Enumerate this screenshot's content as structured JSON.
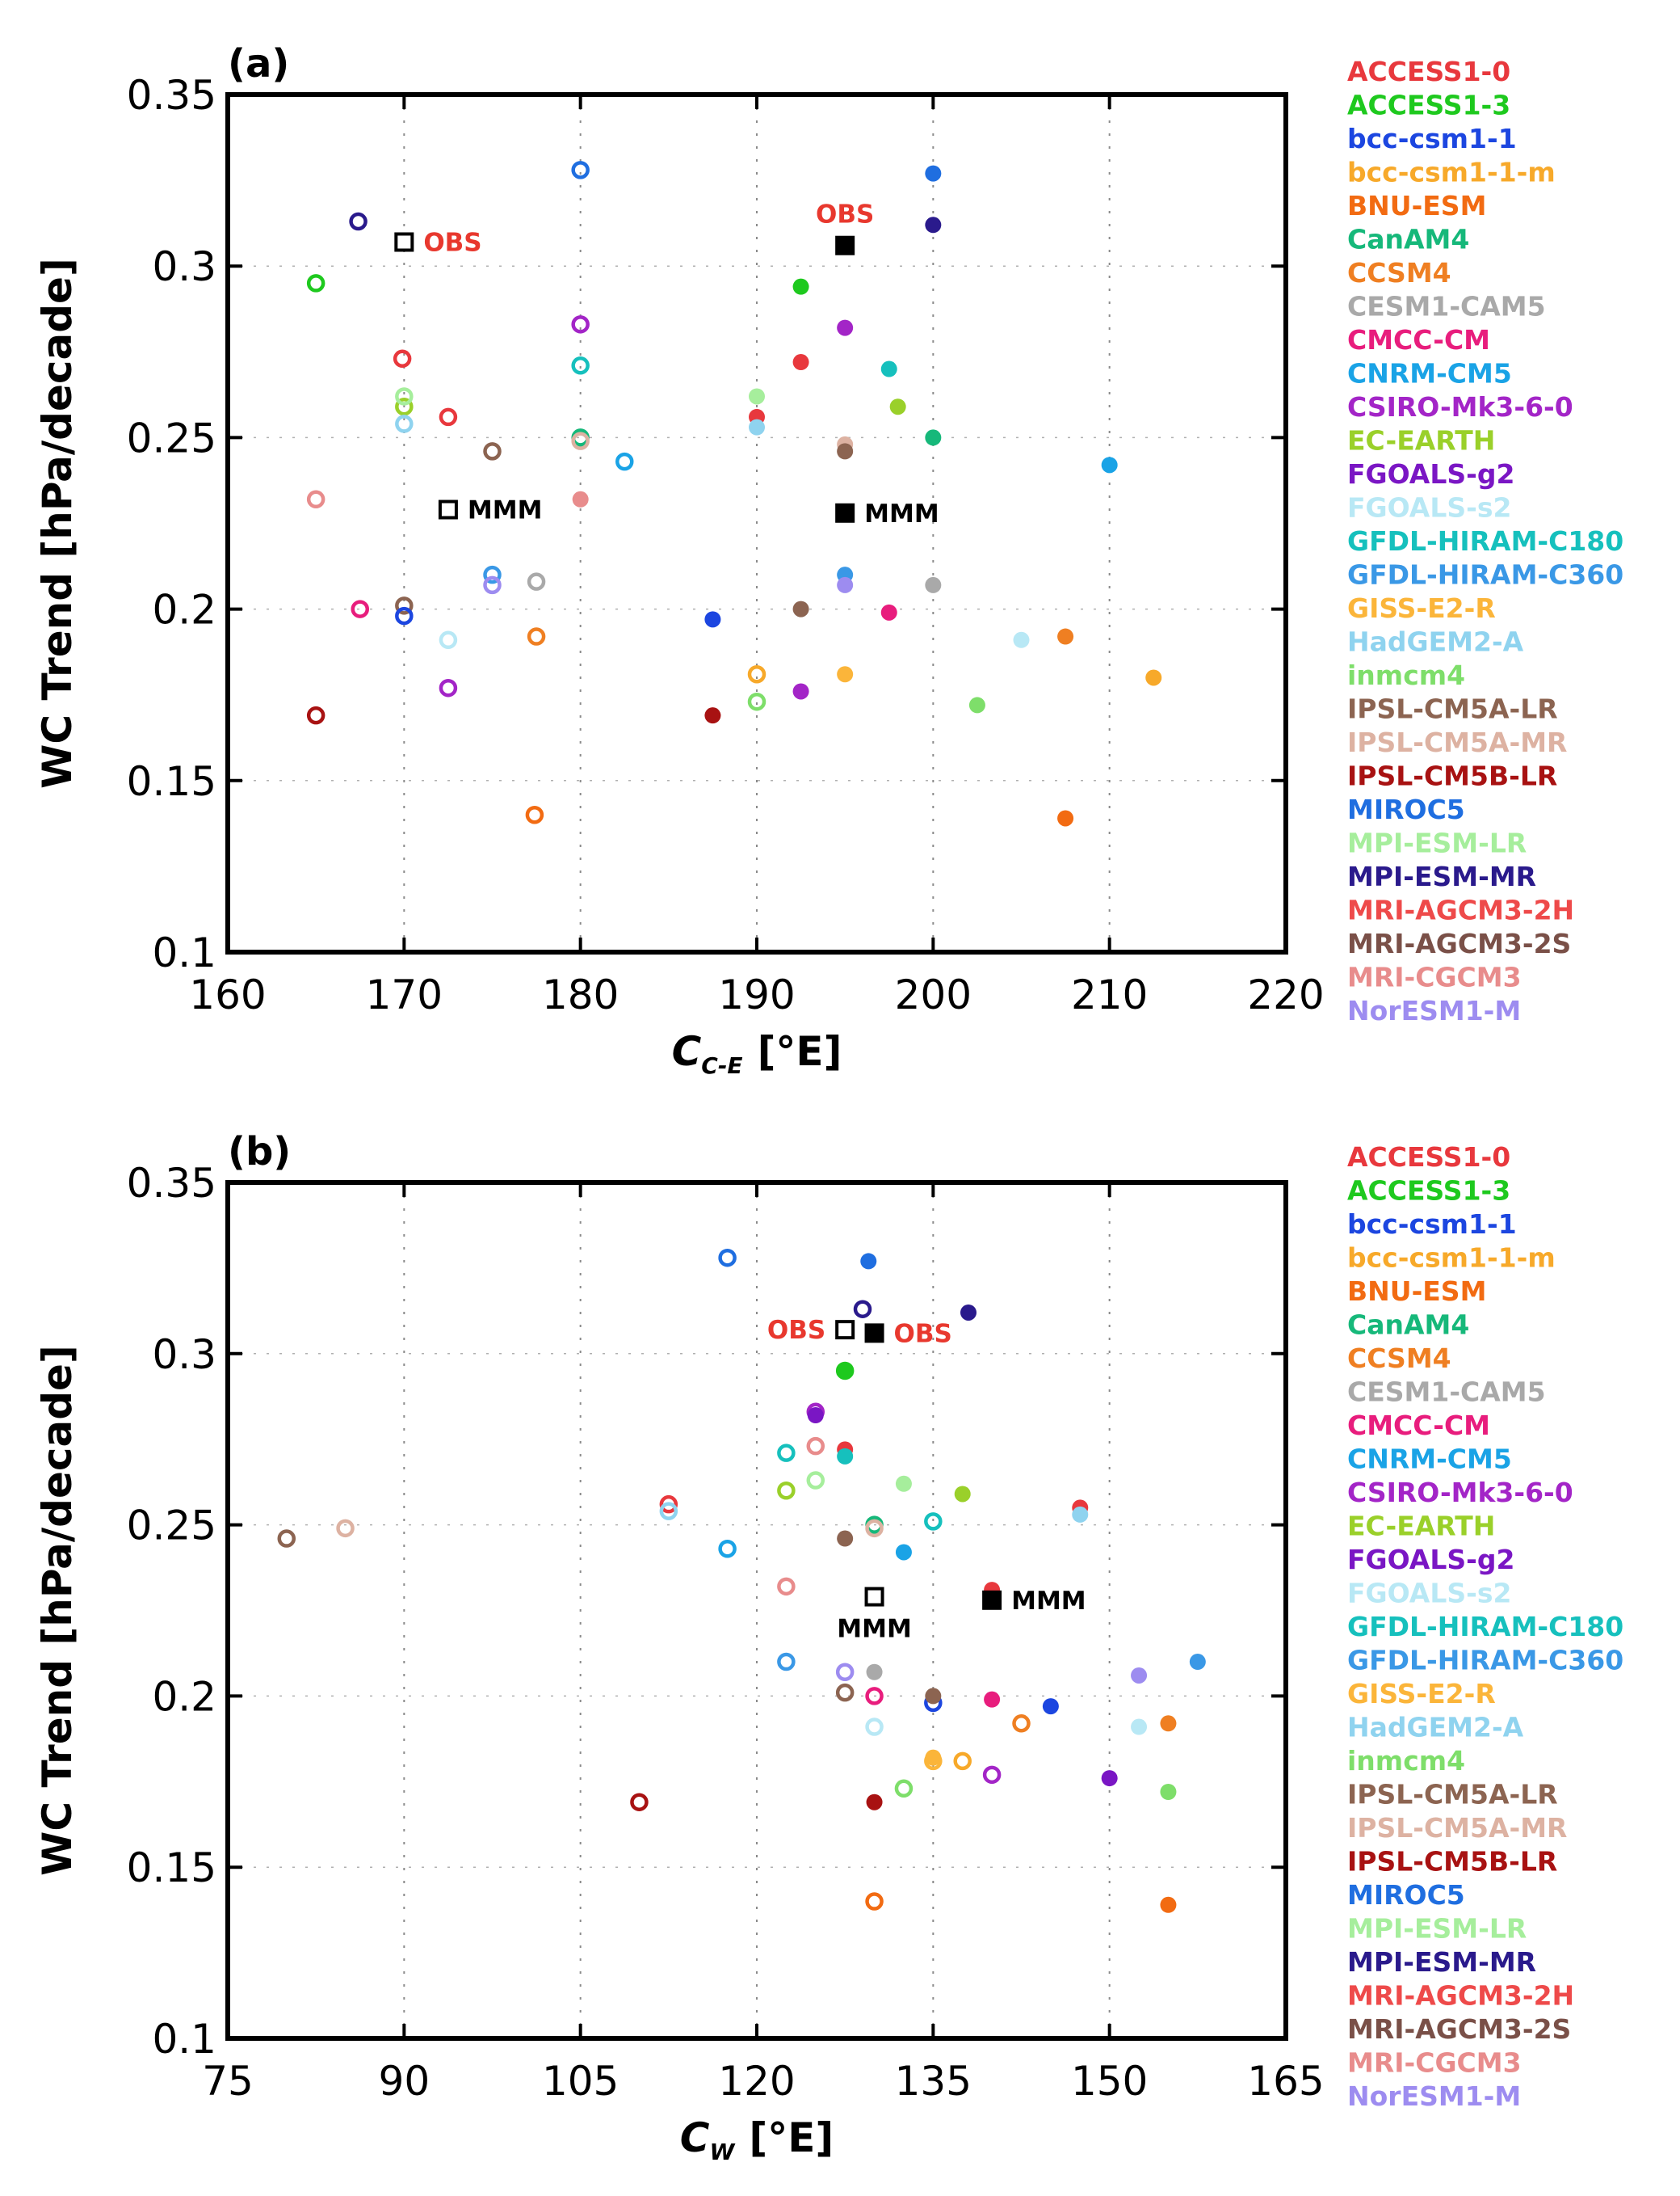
{
  "models": [
    {
      "name": "ACCESS1-0",
      "color": "#e8383d"
    },
    {
      "name": "ACCESS1-3",
      "color": "#1ec91e"
    },
    {
      "name": "bcc-csm1-1",
      "color": "#1c46e0"
    },
    {
      "name": "bcc-csm1-1-m",
      "color": "#f7a92a"
    },
    {
      "name": "BNU-ESM",
      "color": "#f26b12"
    },
    {
      "name": "CanAM4",
      "color": "#16b87a"
    },
    {
      "name": "CCSM4",
      "color": "#ef7f22"
    },
    {
      "name": "CESM1-CAM5",
      "color": "#a9a9a9"
    },
    {
      "name": "CMCC-CM",
      "color": "#e81d7d"
    },
    {
      "name": "CNRM-CM5",
      "color": "#1aa3e6"
    },
    {
      "name": "CSIRO-Mk3-6-0",
      "color": "#a325c7"
    },
    {
      "name": "EC-EARTH",
      "color": "#9ad02a"
    },
    {
      "name": "FGOALS-g2",
      "color": "#7a16c4"
    },
    {
      "name": "FGOALS-s2",
      "color": "#b8e8f5"
    },
    {
      "name": "GFDL-HIRAM-C180",
      "color": "#16c0bd"
    },
    {
      "name": "GFDL-HIRAM-C360",
      "color": "#3a98e6"
    },
    {
      "name": "GISS-E2-R",
      "color": "#fbb53a"
    },
    {
      "name": "HadGEM2-A",
      "color": "#8fd3ef"
    },
    {
      "name": "inmcm4",
      "color": "#7ede6a"
    },
    {
      "name": "IPSL-CM5A-LR",
      "color": "#8c6451"
    },
    {
      "name": "IPSL-CM5A-MR",
      "color": "#ddb2a2"
    },
    {
      "name": "IPSL-CM5B-LR",
      "color": "#a81212"
    },
    {
      "name": "MIROC5",
      "color": "#1f6ee0"
    },
    {
      "name": "MPI-ESM-LR",
      "color": "#a6ee9c"
    },
    {
      "name": "MPI-ESM-MR",
      "color": "#2a1a8c"
    },
    {
      "name": "MRI-AGCM3-2H",
      "color": "#ee4a4a"
    },
    {
      "name": "MRI-AGCM3-2S",
      "color": "#7a5048"
    },
    {
      "name": "MRI-CGCM3",
      "color": "#e88c8c"
    },
    {
      "name": "NorESM1-M",
      "color": "#9d8cf0"
    }
  ],
  "chart_data": [
    {
      "type": "scatter",
      "panel_label": "(a)",
      "ylabel": "WC Trend [hPa/decade]",
      "xlabel_symbol": "C",
      "xlabel_sub": "C-E",
      "xlabel_unit": "[°E]",
      "xlim": [
        160,
        220
      ],
      "ylim": [
        0.1,
        0.35
      ],
      "xticks": [
        160,
        170,
        180,
        190,
        200,
        210,
        220
      ],
      "yticks": [
        0.1,
        0.15,
        0.2,
        0.25,
        0.3,
        0.35
      ],
      "ytick_labels": [
        "0.1",
        "0.15",
        "0.2",
        "0.25",
        "0.3",
        "0.35"
      ],
      "open": [
        [
          165,
          0.295,
          1
        ],
        [
          169.9,
          0.273,
          0
        ],
        [
          172.5,
          0.256,
          0
        ],
        [
          180,
          0.25,
          5
        ],
        [
          167.4,
          0.313,
          24
        ],
        [
          165,
          0.232,
          27
        ],
        [
          175,
          0.246,
          19
        ],
        [
          180,
          0.249,
          20
        ],
        [
          180,
          0.328,
          22
        ],
        [
          170,
          0.201,
          19
        ],
        [
          170,
          0.198,
          2
        ],
        [
          167.5,
          0.2,
          8
        ],
        [
          172.5,
          0.191,
          13
        ],
        [
          175,
          0.21,
          15
        ],
        [
          175,
          0.207,
          28
        ],
        [
          177.5,
          0.208,
          7
        ],
        [
          177.5,
          0.192,
          6
        ],
        [
          172.5,
          0.177,
          10
        ],
        [
          165,
          0.169,
          21
        ],
        [
          177.4,
          0.14,
          4
        ],
        [
          170,
          0.259,
          11
        ],
        [
          170,
          0.262,
          23
        ],
        [
          170,
          0.254,
          17
        ],
        [
          180,
          0.283,
          10
        ],
        [
          180,
          0.271,
          14
        ],
        [
          182.5,
          0.243,
          9
        ],
        [
          190,
          0.181,
          3
        ],
        [
          190,
          0.173,
          18
        ]
      ],
      "filled": [
        [
          192.5,
          0.294,
          1
        ],
        [
          192.5,
          0.272,
          0
        ],
        [
          190,
          0.256,
          0
        ],
        [
          190,
          0.262,
          23
        ],
        [
          190,
          0.253,
          17
        ],
        [
          180,
          0.232,
          27
        ],
        [
          195,
          0.282,
          10
        ],
        [
          197.5,
          0.27,
          14
        ],
        [
          198,
          0.259,
          11
        ],
        [
          200,
          0.25,
          5
        ],
        [
          200,
          0.327,
          22
        ],
        [
          200,
          0.312,
          24
        ],
        [
          195,
          0.248,
          20
        ],
        [
          195,
          0.246,
          19
        ],
        [
          210,
          0.242,
          9
        ],
        [
          195,
          0.21,
          15
        ],
        [
          195,
          0.207,
          28
        ],
        [
          192.5,
          0.2,
          19
        ],
        [
          197.5,
          0.199,
          8
        ],
        [
          200,
          0.207,
          7
        ],
        [
          187.5,
          0.197,
          2
        ],
        [
          205,
          0.191,
          13
        ],
        [
          207.5,
          0.192,
          6
        ],
        [
          212.5,
          0.18,
          3
        ],
        [
          195,
          0.181,
          16
        ],
        [
          192.5,
          0.176,
          10
        ],
        [
          202.5,
          0.172,
          18
        ],
        [
          187.5,
          0.169,
          21
        ],
        [
          207.5,
          0.139,
          4
        ]
      ],
      "refs": [
        {
          "x": 170,
          "y": 0.307,
          "filled": false,
          "label": "OBS",
          "label_pos": "right",
          "label_color": "red"
        },
        {
          "x": 172.5,
          "y": 0.229,
          "filled": false,
          "label": "MMM",
          "label_pos": "right",
          "label_color": "black"
        },
        {
          "x": 195,
          "y": 0.306,
          "filled": true,
          "label": "OBS",
          "label_pos": "above",
          "label_color": "red"
        },
        {
          "x": 195,
          "y": 0.228,
          "filled": true,
          "label": "MMM",
          "label_pos": "right",
          "label_color": "black"
        }
      ]
    },
    {
      "type": "scatter",
      "panel_label": "(b)",
      "ylabel": "WC Trend [hPa/decade]",
      "xlabel_symbol": "C",
      "xlabel_sub": "W",
      "xlabel_unit": "[°E]",
      "xlim": [
        75,
        165
      ],
      "ylim": [
        0.1,
        0.35
      ],
      "xticks": [
        75,
        90,
        105,
        120,
        135,
        150,
        165
      ],
      "yticks": [
        0.1,
        0.15,
        0.2,
        0.25,
        0.3,
        0.35
      ],
      "ytick_labels": [
        "0.1",
        "0.15",
        "0.2",
        "0.25",
        "0.3",
        "0.35"
      ],
      "open": [
        [
          117.5,
          0.328,
          22
        ],
        [
          129,
          0.313,
          24
        ],
        [
          127.5,
          0.295,
          1
        ],
        [
          125,
          0.283,
          10
        ],
        [
          125,
          0.273,
          27
        ],
        [
          122.5,
          0.271,
          14
        ],
        [
          125,
          0.263,
          23
        ],
        [
          122.5,
          0.26,
          11
        ],
        [
          112.5,
          0.256,
          0
        ],
        [
          112.5,
          0.254,
          17
        ],
        [
          117.5,
          0.243,
          9
        ],
        [
          80,
          0.246,
          19
        ],
        [
          85,
          0.249,
          20
        ],
        [
          130,
          0.25,
          5
        ],
        [
          135,
          0.251,
          14
        ],
        [
          130,
          0.249,
          20
        ],
        [
          122.5,
          0.232,
          27
        ],
        [
          122.5,
          0.21,
          15
        ],
        [
          127.5,
          0.207,
          28
        ],
        [
          127.5,
          0.201,
          19
        ],
        [
          130,
          0.2,
          8
        ],
        [
          135,
          0.198,
          2
        ],
        [
          130,
          0.191,
          13
        ],
        [
          142.5,
          0.192,
          6
        ],
        [
          137.5,
          0.181,
          3
        ],
        [
          132.5,
          0.173,
          18
        ],
        [
          140,
          0.177,
          10
        ],
        [
          110,
          0.169,
          21
        ],
        [
          130,
          0.14,
          4
        ],
        [
          135,
          0.181,
          16
        ]
      ],
      "filled": [
        [
          129.5,
          0.327,
          22
        ],
        [
          138,
          0.312,
          24
        ],
        [
          127.5,
          0.295,
          1
        ],
        [
          125,
          0.282,
          12
        ],
        [
          127.5,
          0.272,
          0
        ],
        [
          127.5,
          0.27,
          14
        ],
        [
          132.5,
          0.262,
          23
        ],
        [
          137.5,
          0.259,
          11
        ],
        [
          147.5,
          0.255,
          0
        ],
        [
          147.5,
          0.253,
          17
        ],
        [
          132.5,
          0.242,
          9
        ],
        [
          127.5,
          0.246,
          19
        ],
        [
          140,
          0.231,
          0
        ],
        [
          157.5,
          0.21,
          15
        ],
        [
          152.5,
          0.206,
          28
        ],
        [
          130,
          0.207,
          7
        ],
        [
          135,
          0.2,
          19
        ],
        [
          140,
          0.199,
          8
        ],
        [
          145,
          0.197,
          2
        ],
        [
          152.5,
          0.191,
          13
        ],
        [
          155,
          0.192,
          6
        ],
        [
          135,
          0.182,
          16
        ],
        [
          150,
          0.176,
          12
        ],
        [
          155,
          0.172,
          18
        ],
        [
          130,
          0.169,
          21
        ],
        [
          155,
          0.139,
          4
        ]
      ],
      "refs": [
        {
          "x": 127.5,
          "y": 0.307,
          "filled": false,
          "label": "OBS",
          "label_pos": "left",
          "label_color": "red"
        },
        {
          "x": 130,
          "y": 0.306,
          "filled": true,
          "label": "OBS",
          "label_pos": "right",
          "label_color": "red"
        },
        {
          "x": 130,
          "y": 0.229,
          "filled": false,
          "label": "MMM",
          "label_pos": "below",
          "label_color": "black"
        },
        {
          "x": 140,
          "y": 0.228,
          "filled": true,
          "label": "MMM",
          "label_pos": "right",
          "label_color": "black"
        }
      ]
    }
  ]
}
